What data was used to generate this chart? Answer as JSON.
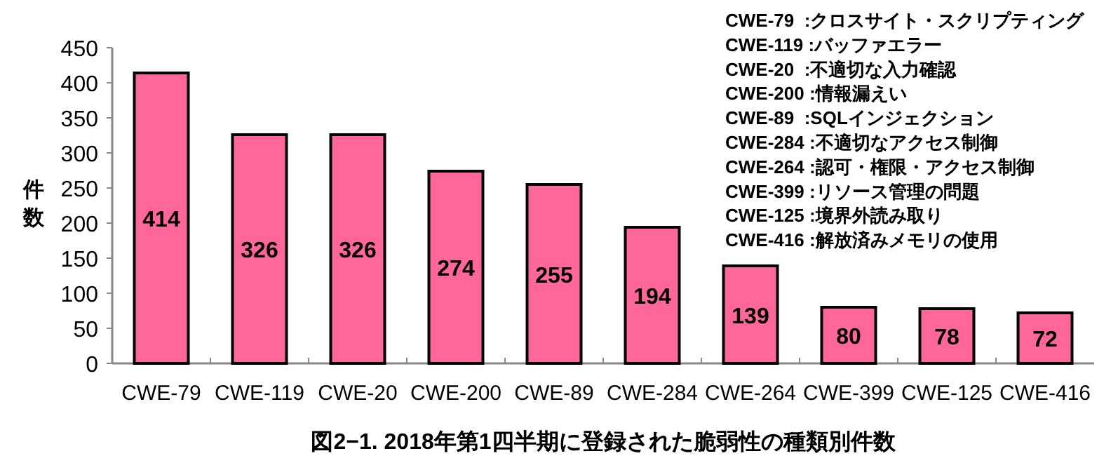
{
  "chart_data": {
    "type": "bar",
    "title": "図2−1. 2018年第1四半期に登録された脆弱性の種類別件数",
    "ylabel": "件数",
    "categories": [
      "CWE-79",
      "CWE-119",
      "CWE-20",
      "CWE-200",
      "CWE-89",
      "CWE-284",
      "CWE-264",
      "CWE-399",
      "CWE-125",
      "CWE-416"
    ],
    "values": [
      414,
      326,
      326,
      274,
      255,
      194,
      139,
      80,
      78,
      72
    ],
    "color": "#ff6699",
    "ylim": [
      0,
      450
    ],
    "yticks": [
      0,
      50,
      100,
      150,
      200,
      250,
      300,
      350,
      400,
      450
    ],
    "grid": false,
    "data_labels": true,
    "annotations": [
      "CWE-79  :クロスサイト・スクリプティング",
      "CWE-119 :バッファエラー",
      "CWE-20  :不適切な入力確認",
      "CWE-200 :情報漏えい",
      "CWE-89  :SQLインジェクション",
      "CWE-284 :不適切なアクセス制御",
      "CWE-264 :認可・権限・アクセス制御",
      "CWE-399 :リソース管理の問題",
      "CWE-125 :境界外読み取り",
      "CWE-416 :解放済みメモリの使用"
    ]
  }
}
